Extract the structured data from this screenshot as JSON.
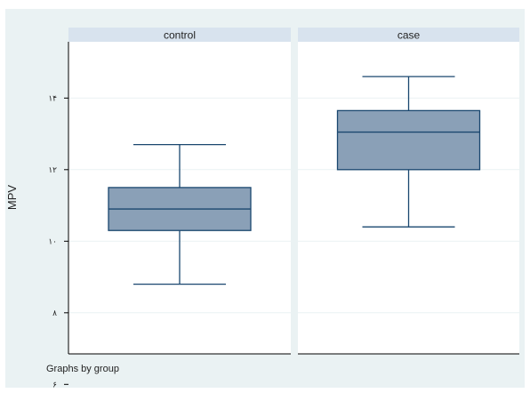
{
  "chart_data": {
    "type": "boxplot",
    "ylabel": "MPV",
    "footnote": "Graphs by group",
    "ylim": [
      6,
      12
    ],
    "yticks": [
      6,
      8,
      10,
      12,
      14
    ],
    "ytick_labels": [
      "۶",
      "۸",
      "۱۰",
      "۱۲",
      "۱۴"
    ],
    "grid": true,
    "panels": [
      {
        "label": "control",
        "whisker_low": 8.8,
        "q1": 10.3,
        "median": 10.9,
        "q3": 11.5,
        "whisker_high": 12.7
      },
      {
        "label": "case",
        "whisker_low": 10.4,
        "q1": 12.0,
        "median": 13.05,
        "q3": 13.65,
        "whisker_high": 14.6
      }
    ],
    "colors": {
      "box_fill": "#8aa0b7",
      "box_stroke": "#1a476f",
      "panel_header": "#d8e3ee",
      "outer_background": "#eaf2f3",
      "plot_background": "#ffffff",
      "grid": "#eaf2f3"
    }
  }
}
